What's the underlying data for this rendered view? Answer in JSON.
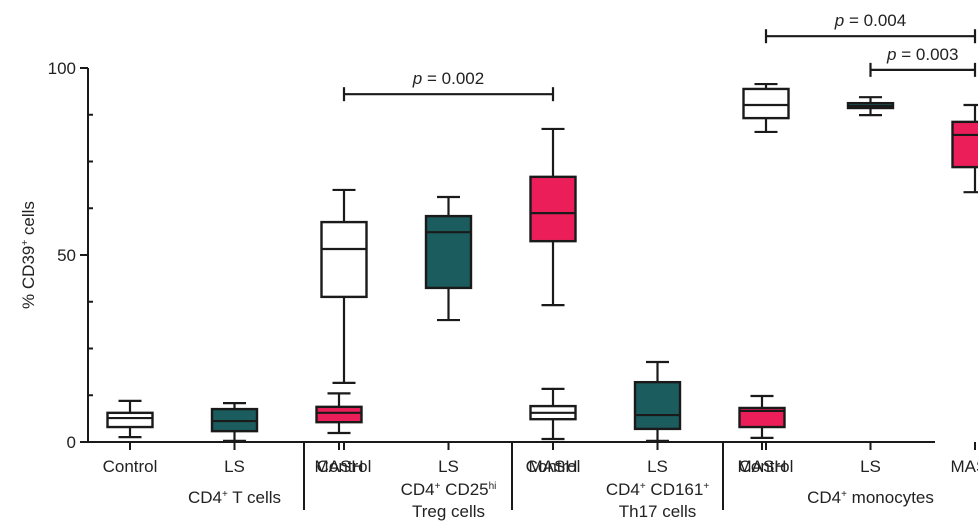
{
  "chart_data": {
    "type": "boxplot",
    "title": "",
    "xlabel": "",
    "ylabel": "% CD39⁺ cells",
    "ylabel_parts": {
      "prefix": "% CD39",
      "sup": "+",
      "suffix": " cells"
    },
    "ylim": [
      0,
      100
    ],
    "yticks": [
      0,
      50,
      100
    ],
    "yminor_ticks": [
      25,
      75,
      12.5,
      37.5,
      62.5,
      87.5
    ],
    "grid": false,
    "legend": "none",
    "colors": {
      "Control": "#ffffff",
      "LS": "#1b5c5e",
      "MASH": "#ec1e5a"
    },
    "categories": [
      "Control",
      "LS",
      "MASH"
    ],
    "groups": [
      {
        "name": "CD4+ T cells",
        "label_lines": [
          [
            {
              "t": "CD4"
            },
            {
              "t": "+",
              "sup": true
            },
            {
              "t": " T cells"
            }
          ]
        ],
        "boxes": [
          {
            "category": "Control",
            "min": 1.3,
            "q1": 4.0,
            "median": 6.4,
            "q3": 7.8,
            "max": 11.0
          },
          {
            "category": "LS",
            "min": 0.3,
            "q1": 2.9,
            "median": 5.6,
            "q3": 8.8,
            "max": 10.4
          },
          {
            "category": "MASH",
            "min": 2.4,
            "q1": 5.3,
            "median": 7.8,
            "q3": 9.4,
            "max": 13.0
          }
        ],
        "comparisons": []
      },
      {
        "name": "CD4+ CD25hi Treg cells",
        "label_lines": [
          [
            {
              "t": "CD4"
            },
            {
              "t": "+",
              "sup": true
            },
            {
              "t": " CD25"
            },
            {
              "t": "hi",
              "sup": true
            }
          ],
          [
            {
              "t": "Treg cells"
            }
          ]
        ],
        "boxes": [
          {
            "category": "Control",
            "min": 15.8,
            "q1": 38.8,
            "median": 51.6,
            "q3": 58.8,
            "max": 67.4
          },
          {
            "category": "LS",
            "min": 32.6,
            "q1": 41.2,
            "median": 56.1,
            "q3": 60.4,
            "max": 65.5
          },
          {
            "category": "MASH",
            "min": 36.6,
            "q1": 53.7,
            "median": 61.2,
            "q3": 70.9,
            "max": 83.7
          }
        ],
        "comparisons": [
          {
            "from": "Control",
            "to": "MASH",
            "p_label": "0.002",
            "level": 93
          }
        ]
      },
      {
        "name": "CD4+ CD161+ Th17 cells",
        "label_lines": [
          [
            {
              "t": "CD4"
            },
            {
              "t": "+",
              "sup": true
            },
            {
              "t": " CD161"
            },
            {
              "t": "+",
              "sup": true
            }
          ],
          [
            {
              "t": "Th17 cells"
            }
          ]
        ],
        "boxes": [
          {
            "category": "Control",
            "min": 0.8,
            "q1": 6.1,
            "median": 7.8,
            "q3": 9.6,
            "max": 14.2
          },
          {
            "category": "LS",
            "min": 0.3,
            "q1": 3.5,
            "median": 7.2,
            "q3": 16.0,
            "max": 21.4
          },
          {
            "category": "MASH",
            "min": 1.1,
            "q1": 4.0,
            "median": 8.3,
            "q3": 9.1,
            "max": 12.3
          }
        ],
        "comparisons": []
      },
      {
        "name": "CD4+ monocytes",
        "label_lines": [
          [
            {
              "t": "CD4"
            },
            {
              "t": "+",
              "sup": true
            },
            {
              "t": " monocytes"
            }
          ]
        ],
        "boxes": [
          {
            "category": "Control",
            "min": 82.9,
            "q1": 86.6,
            "median": 90.1,
            "q3": 94.4,
            "max": 95.7
          },
          {
            "category": "LS",
            "min": 87.4,
            "q1": 89.3,
            "median": 89.8,
            "q3": 90.6,
            "max": 92.2
          },
          {
            "category": "MASH",
            "min": 66.8,
            "q1": 73.5,
            "median": 82.1,
            "q3": 85.6,
            "max": 90.1
          }
        ],
        "comparisons": [
          {
            "from": "Control",
            "to": "MASH",
            "p_label": "0.004",
            "level": 108.5
          },
          {
            "from": "LS",
            "to": "MASH",
            "p_label": "0.003",
            "level": 99.5
          }
        ]
      }
    ],
    "p_prefix": "p",
    "p_equals": " = "
  }
}
